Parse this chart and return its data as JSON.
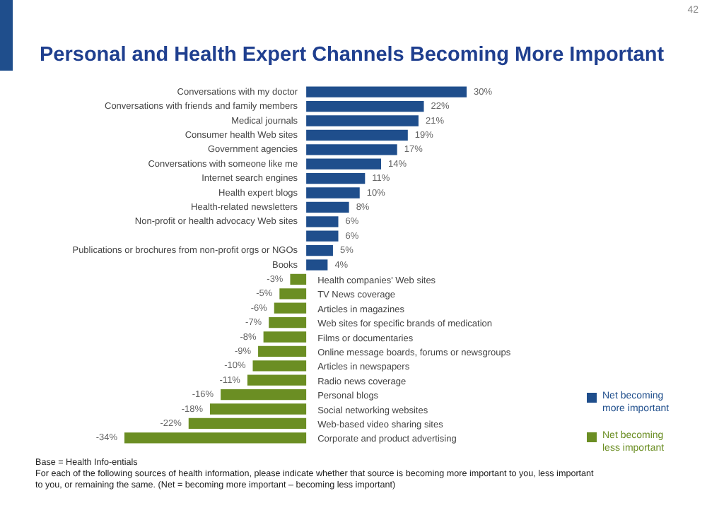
{
  "chart_data": {
    "type": "bar",
    "orientation": "horizontal",
    "title": "Personal and Health Expert Channels Becoming More Important",
    "categories": [
      "Conversations with my doctor",
      "Conversations with friends and family members",
      "Medical journals",
      "Consumer health Web sites",
      "Government agencies",
      "Conversations with someone like me",
      "Internet search engines",
      "Health expert blogs",
      "Health-related newsletters",
      "Non-profit or health advocacy Web sites",
      null,
      "Publications or brochures from non-profit orgs or NGOs",
      "Books",
      "Health companies' Web sites",
      "TV News coverage",
      "Articles in magazines",
      "Web sites for specific brands of medication",
      "Films or documentaries",
      "Online message boards, forums or newsgroups",
      "Articles in newspapers",
      "Radio news coverage",
      "Personal blogs",
      "Social networking websites",
      "Web-based video sharing sites",
      "Corporate and product advertising"
    ],
    "series": [
      {
        "name": "Net becoming more important",
        "color": "#1f4e8c",
        "values": [
          30,
          22,
          21,
          19,
          17,
          14,
          11,
          10,
          8,
          6,
          6,
          5,
          4,
          null,
          null,
          null,
          null,
          null,
          null,
          null,
          null,
          null,
          null,
          null,
          null
        ],
        "value_labels": [
          "30%",
          "22%",
          "21%",
          "19%",
          "17%",
          "14%",
          "11%",
          "10%",
          "8%",
          "6%",
          "6%",
          "5%",
          "4%",
          null,
          null,
          null,
          null,
          null,
          null,
          null,
          null,
          null,
          null,
          null,
          null
        ]
      },
      {
        "name": "Net becoming less important",
        "color": "#6b8e23",
        "values": [
          null,
          null,
          null,
          null,
          null,
          null,
          null,
          null,
          null,
          null,
          null,
          null,
          null,
          -3,
          -5,
          -6,
          -7,
          -8,
          -9,
          -10,
          -11,
          -16,
          -18,
          -22,
          -34
        ],
        "value_labels": [
          null,
          null,
          null,
          null,
          null,
          null,
          null,
          null,
          null,
          null,
          null,
          null,
          null,
          "-3%",
          "-5%",
          "-6%",
          "-7%",
          "-8%",
          "-9%",
          "-10%",
          "-11%",
          "-16%",
          "-18%",
          "-22%",
          "-34%"
        ]
      }
    ],
    "legend": "bottom right",
    "annotations": [
      "42",
      "Base = Health Info-entials",
      "For each of the following sources of health information, please indicate whether that source is becoming more important to you, less important to you, or remaining the same. (Net = becoming more important – becoming less important)"
    ]
  }
}
